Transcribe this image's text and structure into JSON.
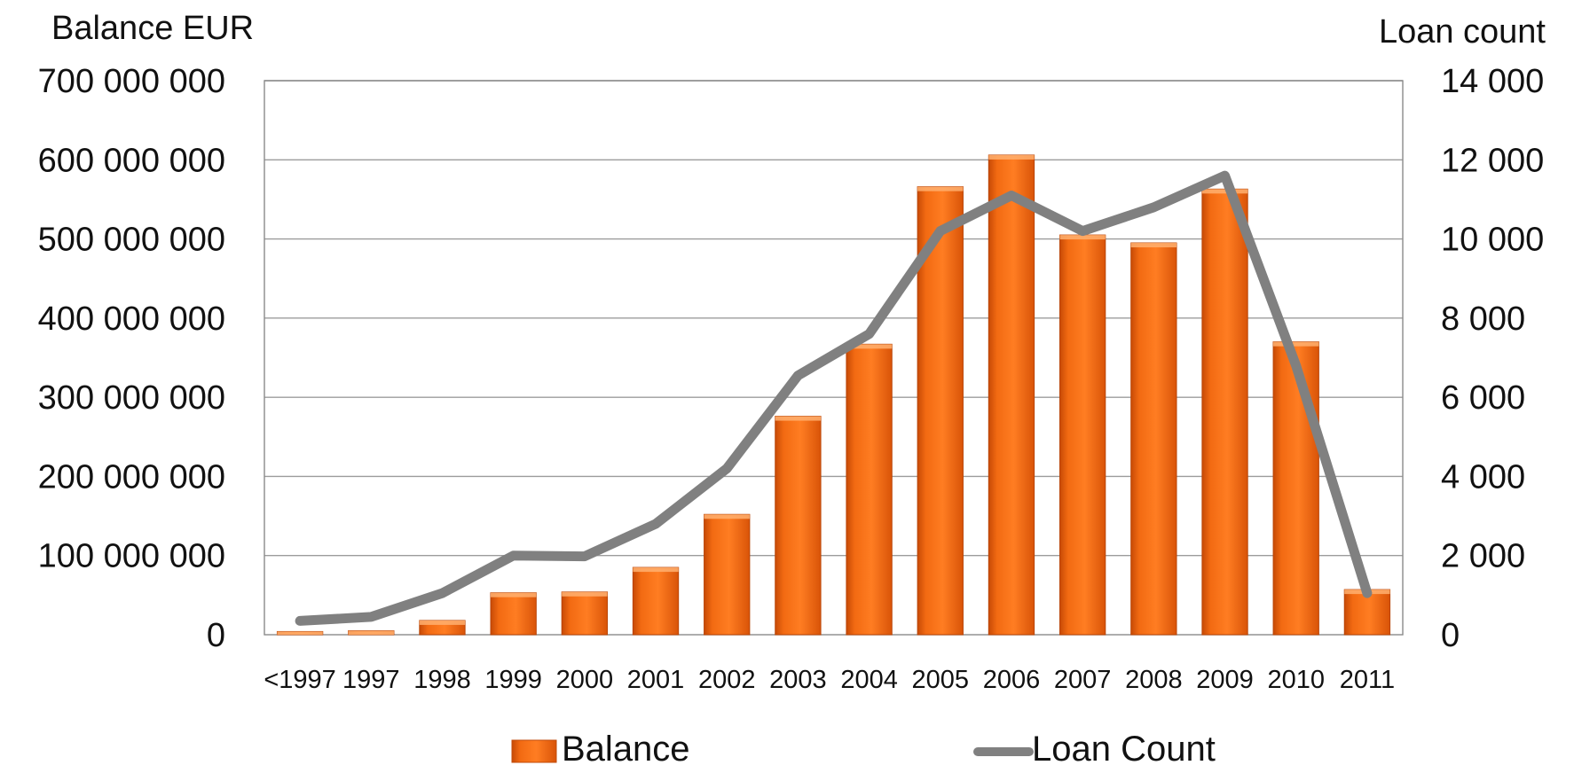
{
  "chart_data": {
    "type": "bar",
    "categories": [
      "<1997",
      "1997",
      "1998",
      "1999",
      "2000",
      "2001",
      "2002",
      "2003",
      "2004",
      "2005",
      "2006",
      "2007",
      "2008",
      "2009",
      "2010",
      "2011"
    ],
    "y_left_label": "Balance EUR",
    "y_right_label": "Loan count",
    "y_left_lim": [
      0,
      700000000
    ],
    "y_right_lim": [
      0,
      14000
    ],
    "y_left_ticks": [
      "0",
      "100 000 000",
      "200 000 000",
      "300 000 000",
      "400 000 000",
      "500 000 000",
      "600 000 000",
      "700 000 000"
    ],
    "y_right_ticks": [
      "0",
      "2 000",
      "4 000",
      "6 000",
      "8 000",
      "10 000",
      "12 000",
      "14 000"
    ],
    "grid": true,
    "legend_position": "bottom",
    "series": [
      {
        "name": "Balance",
        "kind": "bar",
        "axis": "left",
        "color": "#f06010",
        "values": [
          4000000,
          5000000,
          18000000,
          53000000,
          54000000,
          85000000,
          152000000,
          276000000,
          367000000,
          566000000,
          606000000,
          505000000,
          495000000,
          563000000,
          370000000,
          57000000
        ]
      },
      {
        "name": "Loan Count",
        "kind": "line",
        "axis": "right",
        "color": "#808080",
        "values": [
          350,
          450,
          1050,
          2000,
          1980,
          2800,
          4200,
          6550,
          7600,
          10200,
          11100,
          10200,
          10800,
          11600,
          6800,
          1050
        ]
      }
    ]
  }
}
